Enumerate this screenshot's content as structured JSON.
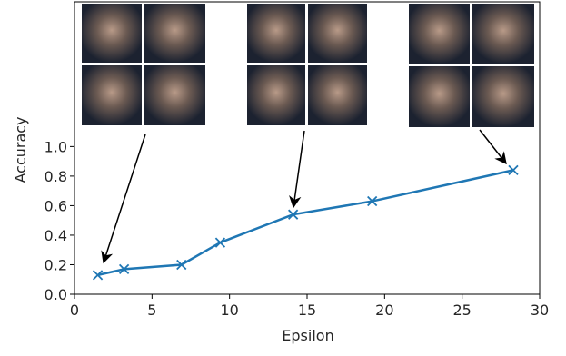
{
  "chart_data": {
    "type": "line",
    "x_label": "Epsilon",
    "y_label": "Accuracy",
    "x": [
      1.5,
      3.2,
      6.9,
      9.4,
      14.1,
      19.2,
      28.3
    ],
    "series": [
      {
        "color": "#1f77b4",
        "marker": "x",
        "values": [
          0.13,
          0.17,
          0.2,
          0.35,
          0.54,
          0.63,
          0.84
        ]
      }
    ],
    "xlim": [
      0,
      30
    ],
    "ylim": [
      0,
      1.98
    ],
    "xticks": [
      0,
      5,
      10,
      15,
      20,
      25,
      30
    ],
    "yticks": [
      {
        "value": 0,
        "label": "0.0"
      },
      {
        "value": 0.2,
        "label": "0.2"
      },
      {
        "value": 0.4,
        "label": "0.4"
      },
      {
        "value": 0.6,
        "label": "0.6"
      },
      {
        "value": 0.8,
        "label": "0.8"
      },
      {
        "value": 1,
        "label": "1.0"
      }
    ]
  }
}
